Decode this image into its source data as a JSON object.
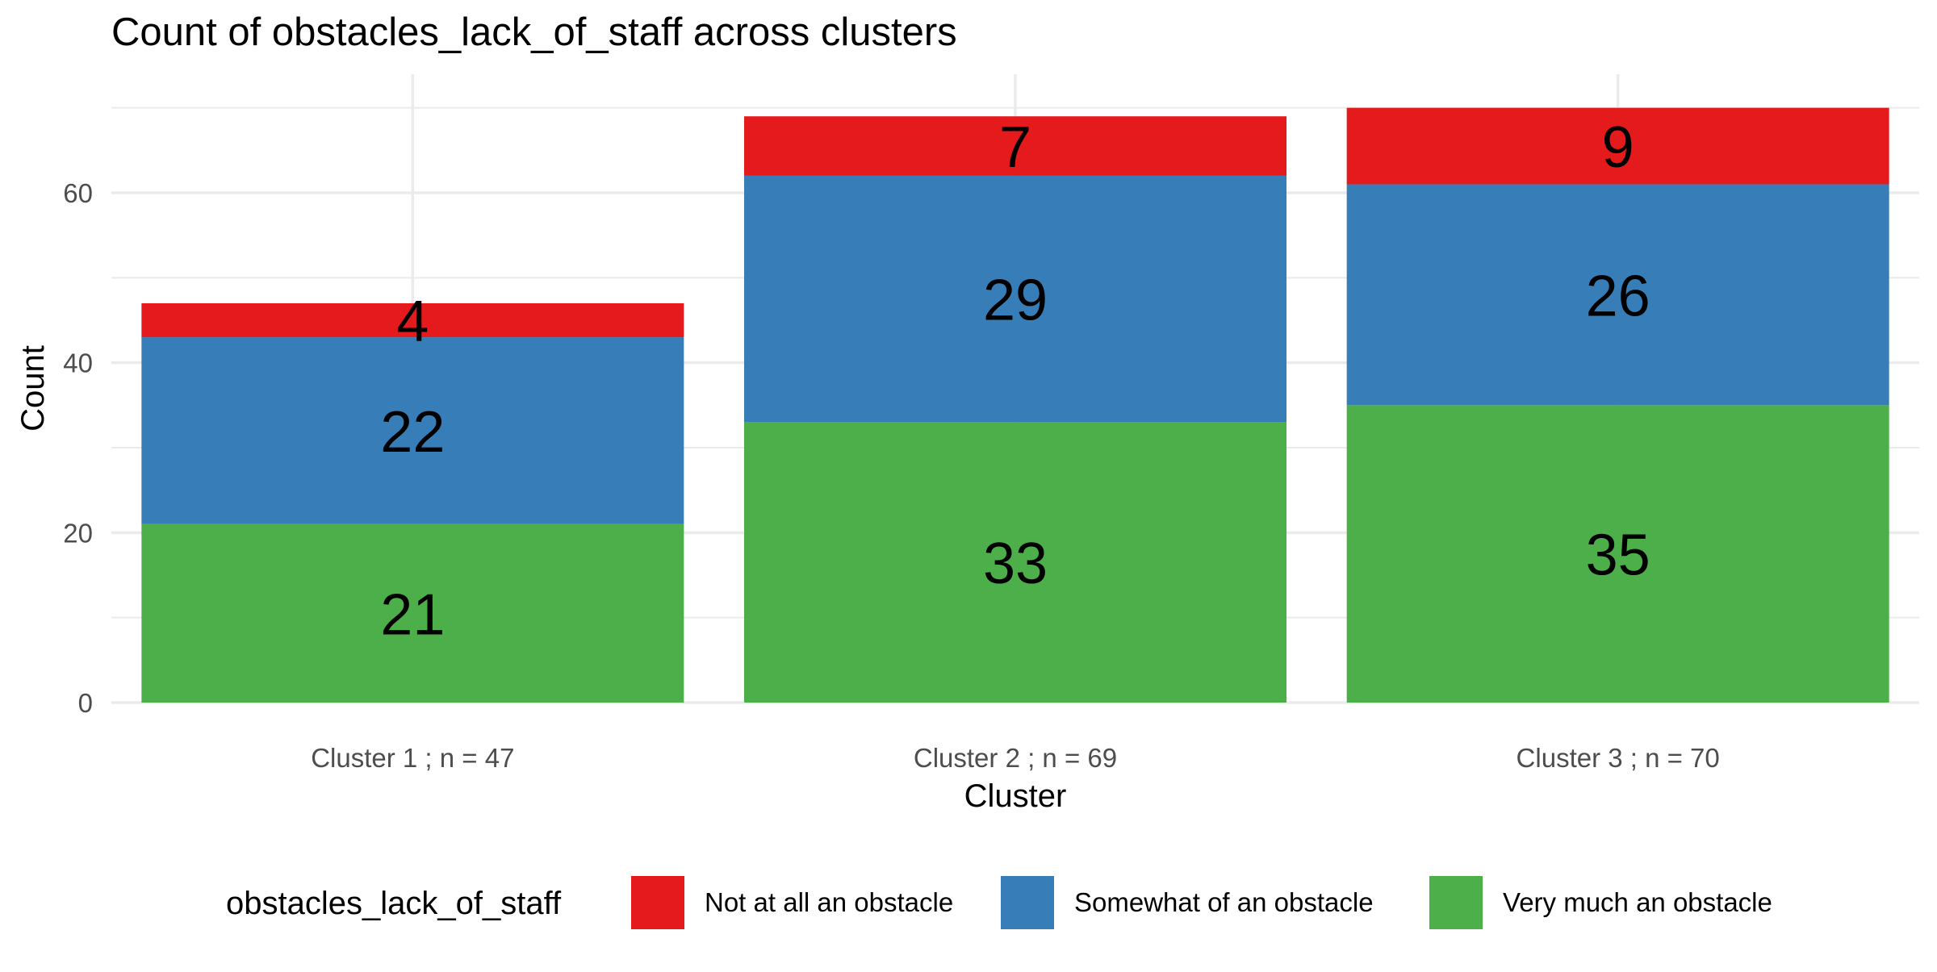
{
  "chart_data": {
    "type": "bar",
    "stacked": true,
    "title": "Count of obstacles_lack_of_staff across clusters",
    "xlabel": "Cluster",
    "ylabel": "Count",
    "categories": [
      "Cluster 1 ; n = 47",
      "Cluster 2 ; n = 69",
      "Cluster 3 ; n = 70"
    ],
    "series": [
      {
        "name": "Very much an obstacle",
        "color": "#4DAF4A",
        "values": [
          21,
          33,
          35
        ]
      },
      {
        "name": "Somewhat of an obstacle",
        "color": "#377EB8",
        "values": [
          22,
          29,
          26
        ]
      },
      {
        "name": "Not at all an obstacle",
        "color": "#E41A1C",
        "values": [
          4,
          7,
          9
        ]
      }
    ],
    "ylim": [
      0,
      70
    ],
    "yticks": [
      0,
      20,
      40,
      60
    ],
    "grid": true,
    "legend": {
      "title": "obstacles_lack_of_staff",
      "position": "bottom",
      "order": [
        "Not at all an obstacle",
        "Somewhat of an obstacle",
        "Very much an obstacle"
      ]
    }
  }
}
